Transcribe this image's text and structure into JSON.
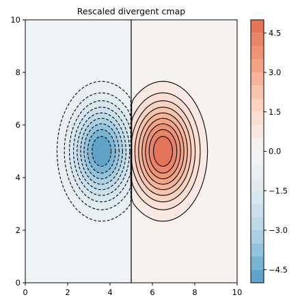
{
  "chart_data": {
    "type": "contour",
    "title": "Rescaled divergent cmap",
    "xlabel": "",
    "ylabel": "",
    "xlim": [
      0,
      10
    ],
    "ylim": [
      0,
      10
    ],
    "x_ticks": [
      "0",
      "2",
      "4",
      "6",
      "8",
      "10"
    ],
    "y_ticks": [
      "0",
      "2",
      "4",
      "6",
      "8",
      "10"
    ],
    "grid": false,
    "divider_x": 5,
    "negative_peak": {
      "x": 3.6,
      "y": 5.0,
      "value": -5.0
    },
    "positive_peak": {
      "x": 6.5,
      "y": 5.0,
      "value": 5.0
    },
    "contour_levels": [
      -4.5,
      -4.0,
      -3.5,
      -3.0,
      -2.5,
      -2.0,
      -1.5,
      -1.0,
      -0.5,
      0.5,
      1.0,
      1.5,
      2.0,
      2.5,
      3.0,
      3.5,
      4.0,
      4.5
    ],
    "colorbar": {
      "range": [
        -5.0,
        5.0
      ],
      "tick_labels": [
        "−4.5",
        "−3.0",
        "−1.5",
        "0.0",
        "1.5",
        "3.0",
        "4.5"
      ],
      "tick_values": [
        -4.5,
        -3.0,
        -1.5,
        0.0,
        1.5,
        3.0,
        4.5
      ],
      "bands": [
        {
          "from": -5.0,
          "to": -4.5,
          "color": "#5fa3c8"
        },
        {
          "from": -4.5,
          "to": -4.0,
          "color": "#79b4d3"
        },
        {
          "from": -4.0,
          "to": -3.5,
          "color": "#94c4dd"
        },
        {
          "from": -3.5,
          "to": -3.0,
          "color": "#aacfe3"
        },
        {
          "from": -3.0,
          "to": -2.5,
          "color": "#bcd9e8"
        },
        {
          "from": -2.5,
          "to": -2.0,
          "color": "#cbe0ec"
        },
        {
          "from": -2.0,
          "to": -1.5,
          "color": "#d7e7ef"
        },
        {
          "from": -1.5,
          "to": -1.0,
          "color": "#e1ecf1"
        },
        {
          "from": -1.0,
          "to": -0.5,
          "color": "#e9f0f3"
        },
        {
          "from": -0.5,
          "to": 0.0,
          "color": "#eef3f5"
        },
        {
          "from": 0.0,
          "to": 0.5,
          "color": "#f8f2ef"
        },
        {
          "from": 0.5,
          "to": 1.0,
          "color": "#fae9e2"
        },
        {
          "from": 1.0,
          "to": 1.5,
          "color": "#fbdfd3"
        },
        {
          "from": 1.5,
          "to": 2.0,
          "color": "#fbd3c2"
        },
        {
          "from": 2.0,
          "to": 2.5,
          "color": "#f9c4ae"
        },
        {
          "from": 2.5,
          "to": 3.0,
          "color": "#f6b59a"
        },
        {
          "from": 3.0,
          "to": 3.5,
          "color": "#f3a487"
        },
        {
          "from": 3.5,
          "to": 4.0,
          "color": "#ee9375"
        },
        {
          "from": 4.0,
          "to": 4.5,
          "color": "#e98466"
        },
        {
          "from": 4.5,
          "to": 5.0,
          "color": "#e47558"
        }
      ]
    }
  }
}
